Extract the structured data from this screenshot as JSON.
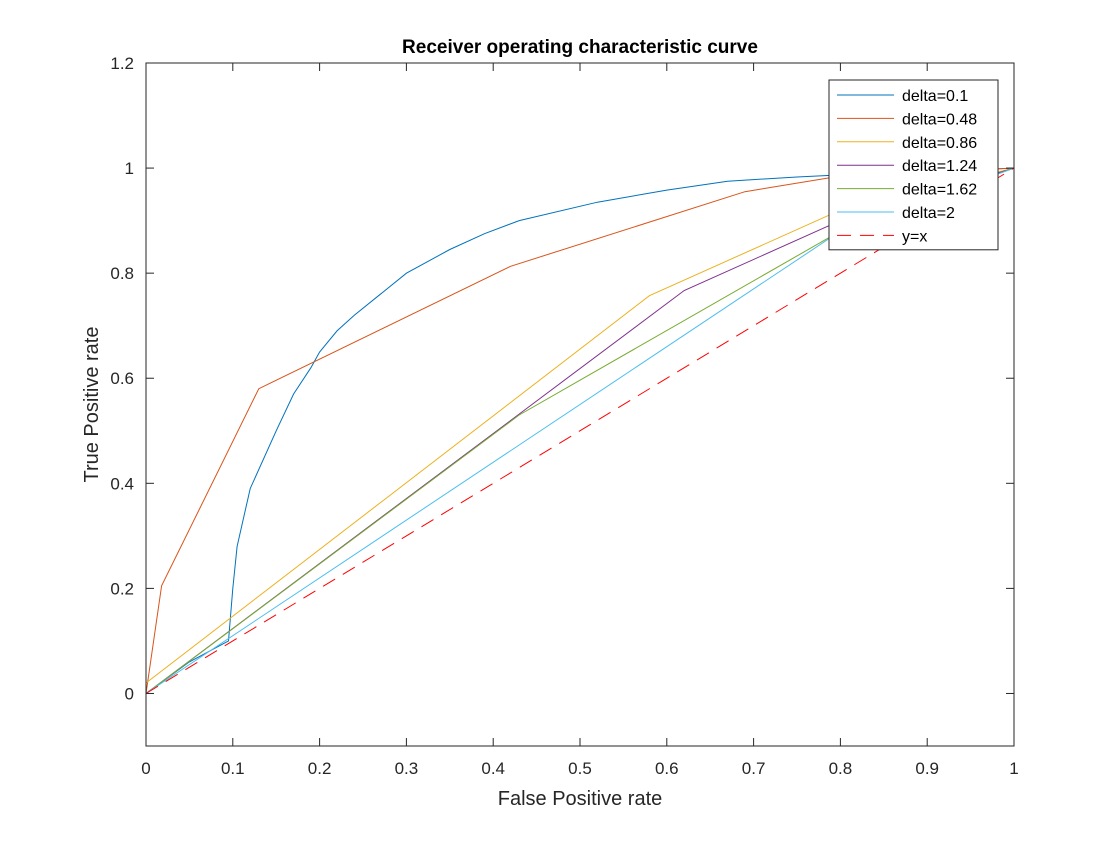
{
  "chart_data": {
    "type": "line",
    "title": "Receiver operating characteristic curve",
    "xlabel": "False Positive rate",
    "ylabel": "True Positive rate",
    "xlim": [
      0,
      1
    ],
    "ylim": [
      -0.1,
      1.2
    ],
    "xticks": [
      "0",
      "0.1",
      "0.2",
      "0.3",
      "0.4",
      "0.5",
      "0.6",
      "0.7",
      "0.8",
      "0.9",
      "1"
    ],
    "yticks": [
      "0",
      "0.2",
      "0.4",
      "0.6",
      "0.8",
      "1",
      "1.2"
    ],
    "grid": false,
    "legend_position": "top-right",
    "series": [
      {
        "name": "delta=0.1",
        "color": "#0072BD",
        "dash": "solid",
        "x": [
          0,
          0.05,
          0.095,
          0.1,
          0.105,
          0.12,
          0.15,
          0.17,
          0.19,
          0.2,
          0.22,
          0.24,
          0.27,
          0.3,
          0.35,
          0.39,
          0.43,
          0.52,
          0.6,
          0.67,
          0.75,
          0.8,
          0.9,
          1
        ],
        "y": [
          0,
          0.06,
          0.1,
          0.2,
          0.28,
          0.39,
          0.5,
          0.57,
          0.62,
          0.65,
          0.69,
          0.72,
          0.76,
          0.8,
          0.845,
          0.875,
          0.9,
          0.935,
          0.958,
          0.975,
          0.983,
          0.987,
          0.993,
          1
        ]
      },
      {
        "name": "delta=0.48",
        "color": "#D95319",
        "dash": "solid",
        "x": [
          0,
          0.018,
          0.13,
          0.42,
          0.69,
          0.8,
          1
        ],
        "y": [
          0,
          0.205,
          0.58,
          0.813,
          0.955,
          0.985,
          1
        ]
      },
      {
        "name": "delta=0.86",
        "color": "#EDB120",
        "dash": "solid",
        "x": [
          0,
          0.58,
          0.8,
          1
        ],
        "y": [
          0.02,
          0.757,
          0.92,
          1
        ]
      },
      {
        "name": "delta=1.24",
        "color": "#7E2F8E",
        "dash": "solid",
        "x": [
          0,
          0.62,
          0.8,
          1
        ],
        "y": [
          0,
          0.767,
          0.9,
          1
        ]
      },
      {
        "name": "delta=1.62",
        "color": "#77AC30",
        "dash": "solid",
        "x": [
          0,
          0.43,
          0.8,
          1
        ],
        "y": [
          0,
          0.53,
          0.88,
          1
        ]
      },
      {
        "name": "delta=2",
        "color": "#4DBEEE",
        "dash": "solid",
        "x": [
          0,
          0.8,
          1
        ],
        "y": [
          0,
          0.88,
          1
        ]
      },
      {
        "name": "y=x",
        "color": "#FF0000",
        "dash": "dashed",
        "x": [
          0,
          1
        ],
        "y": [
          0,
          1
        ]
      }
    ]
  }
}
